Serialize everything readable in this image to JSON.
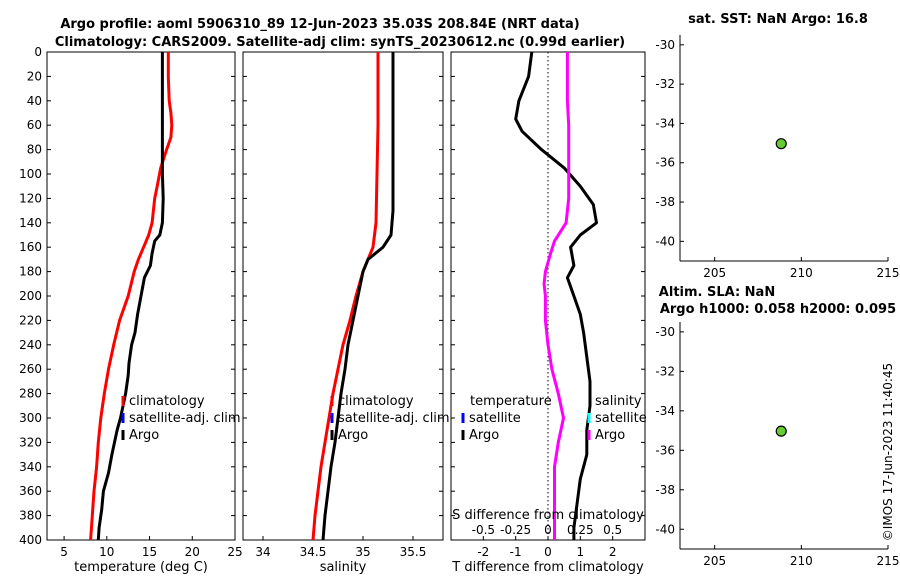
{
  "title": {
    "line1": "Argo profile: aoml 5906310_89 12-Jun-2023 35.03S 208.84E (NRT data)",
    "line2": "Climatology: CARS2009. Satellite-adj clim: synTS_20230612.nc (0.99d earlier)"
  },
  "timestamp": "©IMOS 17-Jun-2023 11:40:45",
  "colors": {
    "climatology": "#ff0000",
    "satellite": "#0000ff",
    "argo": "#000000",
    "salinity_diff": "#ff00ff",
    "salinity_diff_sat": "#00ffff",
    "marker": "#66cc33"
  },
  "chart_data": [
    {
      "type": "line",
      "id": "temperature",
      "xlabel": "temperature (deg C)",
      "ylabel": "",
      "xlim": [
        3,
        25
      ],
      "xticks": [
        5,
        10,
        15,
        20,
        25
      ],
      "ylim": [
        0,
        400
      ],
      "yticks": [
        0,
        20,
        40,
        60,
        80,
        100,
        120,
        140,
        160,
        180,
        200,
        220,
        240,
        260,
        280,
        300,
        320,
        340,
        360,
        380,
        400
      ],
      "legend": [
        "climatology",
        "satellite-adj. clim",
        "Argo"
      ],
      "series": [
        {
          "name": "climatology",
          "color": "#ff0000",
          "points": [
            [
              17.2,
              0
            ],
            [
              17.2,
              20
            ],
            [
              17.3,
              40
            ],
            [
              17.5,
              50
            ],
            [
              17.6,
              60
            ],
            [
              17.5,
              70
            ],
            [
              17.0,
              80
            ],
            [
              16.3,
              95
            ],
            [
              15.9,
              110
            ],
            [
              15.6,
              120
            ],
            [
              15.3,
              140
            ],
            [
              14.9,
              150
            ],
            [
              14.3,
              160
            ],
            [
              13.7,
              170
            ],
            [
              13.2,
              180
            ],
            [
              12.5,
              200
            ],
            [
              11.5,
              220
            ],
            [
              10.8,
              240
            ],
            [
              10.2,
              260
            ],
            [
              9.7,
              280
            ],
            [
              9.3,
              300
            ],
            [
              9.0,
              320
            ],
            [
              8.8,
              340
            ],
            [
              8.5,
              360
            ],
            [
              8.3,
              380
            ],
            [
              8.1,
              400
            ]
          ]
        },
        {
          "name": "Argo",
          "color": "#000000",
          "points": [
            [
              16.5,
              0
            ],
            [
              16.5,
              20
            ],
            [
              16.5,
              40
            ],
            [
              16.5,
              60
            ],
            [
              16.5,
              80
            ],
            [
              16.5,
              100
            ],
            [
              16.6,
              120
            ],
            [
              16.5,
              140
            ],
            [
              16.2,
              150
            ],
            [
              15.6,
              155
            ],
            [
              15.3,
              165
            ],
            [
              15.1,
              175
            ],
            [
              14.4,
              185
            ],
            [
              14.0,
              200
            ],
            [
              13.6,
              215
            ],
            [
              13.3,
              230
            ],
            [
              12.9,
              240
            ],
            [
              12.6,
              255
            ],
            [
              12.5,
              265
            ],
            [
              12.2,
              280
            ],
            [
              11.6,
              300
            ],
            [
              11.2,
              310
            ],
            [
              10.6,
              330
            ],
            [
              10.2,
              345
            ],
            [
              9.6,
              360
            ],
            [
              9.4,
              375
            ],
            [
              9.1,
              390
            ],
            [
              9.0,
              400
            ]
          ]
        }
      ]
    },
    {
      "type": "line",
      "id": "salinity",
      "xlabel": "salinity",
      "ylabel": "",
      "xlim": [
        33.8,
        35.8
      ],
      "xticks": [
        34,
        34.5,
        35,
        35.5
      ],
      "ylim": [
        0,
        400
      ],
      "legend": [
        "climatology",
        "satellite-adj. clim",
        "Argo"
      ],
      "series": [
        {
          "name": "climatology",
          "color": "#ff0000",
          "points": [
            [
              35.15,
              0
            ],
            [
              35.15,
              20
            ],
            [
              35.15,
              60
            ],
            [
              35.14,
              100
            ],
            [
              35.13,
              140
            ],
            [
              35.1,
              160
            ],
            [
              35.05,
              170
            ],
            [
              35.0,
              180
            ],
            [
              34.93,
              200
            ],
            [
              34.87,
              220
            ],
            [
              34.8,
              240
            ],
            [
              34.75,
              260
            ],
            [
              34.7,
              280
            ],
            [
              34.66,
              300
            ],
            [
              34.62,
              320
            ],
            [
              34.58,
              340
            ],
            [
              34.55,
              360
            ],
            [
              34.52,
              380
            ],
            [
              34.5,
              400
            ]
          ]
        },
        {
          "name": "Argo",
          "color": "#000000",
          "points": [
            [
              35.3,
              0
            ],
            [
              35.3,
              20
            ],
            [
              35.3,
              60
            ],
            [
              35.3,
              100
            ],
            [
              35.3,
              130
            ],
            [
              35.28,
              150
            ],
            [
              35.2,
              160
            ],
            [
              35.05,
              170
            ],
            [
              35.0,
              180
            ],
            [
              34.95,
              200
            ],
            [
              34.9,
              220
            ],
            [
              34.85,
              240
            ],
            [
              34.82,
              260
            ],
            [
              34.78,
              280
            ],
            [
              34.75,
              300
            ],
            [
              34.72,
              320
            ],
            [
              34.68,
              340
            ],
            [
              34.65,
              360
            ],
            [
              34.62,
              380
            ],
            [
              34.6,
              400
            ]
          ]
        }
      ]
    },
    {
      "type": "line",
      "id": "difference",
      "xlabel": "T difference from climatology",
      "xlabel_top": "S difference from climatology",
      "xlim": [
        -3,
        3
      ],
      "xticks": [
        -2,
        -1,
        0,
        1,
        2
      ],
      "top_xlim": [
        -0.75,
        0.75
      ],
      "top_xticks": [
        -0.5,
        -0.25,
        0,
        0.25,
        0.5
      ],
      "ylim": [
        0,
        400
      ],
      "legend_left": [
        "temperature",
        "satellite",
        "Argo"
      ],
      "legend_right": [
        "salinity",
        "satellite",
        "Argo"
      ],
      "series": [
        {
          "name": "T diff (Argo)",
          "color": "#000000",
          "points": [
            [
              -0.5,
              0
            ],
            [
              -0.6,
              20
            ],
            [
              -0.9,
              40
            ],
            [
              -1.0,
              55
            ],
            [
              -0.8,
              65
            ],
            [
              -0.2,
              80
            ],
            [
              0.5,
              95
            ],
            [
              1.0,
              110
            ],
            [
              1.4,
              125
            ],
            [
              1.5,
              140
            ],
            [
              1.0,
              150
            ],
            [
              0.7,
              160
            ],
            [
              0.8,
              175
            ],
            [
              0.6,
              185
            ],
            [
              0.8,
              200
            ],
            [
              1.0,
              215
            ],
            [
              1.1,
              230
            ],
            [
              1.2,
              250
            ],
            [
              1.3,
              270
            ],
            [
              1.3,
              290
            ],
            [
              1.2,
              310
            ],
            [
              1.2,
              330
            ],
            [
              1.0,
              350
            ],
            [
              0.9,
              370
            ],
            [
              0.8,
              390
            ],
            [
              0.8,
              400
            ]
          ]
        },
        {
          "name": "S diff (Argo)",
          "color": "#ff00ff",
          "axis": "top",
          "points": [
            [
              0.15,
              0
            ],
            [
              0.15,
              20
            ],
            [
              0.15,
              40
            ],
            [
              0.16,
              60
            ],
            [
              0.16,
              80
            ],
            [
              0.16,
              100
            ],
            [
              0.16,
              120
            ],
            [
              0.14,
              140
            ],
            [
              0.05,
              155
            ],
            [
              0.02,
              165
            ],
            [
              -0.02,
              180
            ],
            [
              -0.03,
              190
            ],
            [
              -0.02,
              200
            ],
            [
              -0.02,
              220
            ],
            [
              0.0,
              240
            ],
            [
              0.03,
              260
            ],
            [
              0.08,
              280
            ],
            [
              0.12,
              300
            ],
            [
              0.08,
              320
            ],
            [
              0.05,
              340
            ],
            [
              0.05,
              360
            ],
            [
              0.05,
              380
            ],
            [
              0.05,
              400
            ]
          ]
        }
      ]
    },
    {
      "type": "scatter",
      "id": "sst_map",
      "title": "sat. SST: NaN Argo: 16.8",
      "xlim": [
        203,
        215
      ],
      "xticks": [
        205,
        210,
        215
      ],
      "ylim": [
        -41,
        -29.5
      ],
      "yticks": [
        -30,
        -32,
        -34,
        -36,
        -38,
        -40
      ],
      "points": [
        [
          208.84,
          -35.03
        ]
      ]
    },
    {
      "type": "scatter",
      "id": "sla_map",
      "title": "Altim. SLA: NaN",
      "subtitle": "Argo h1000: 0.058 h2000: 0.095",
      "xlim": [
        203,
        215
      ],
      "xticks": [
        205,
        210,
        215
      ],
      "ylim": [
        -41,
        -29.5
      ],
      "yticks": [
        -30,
        -32,
        -34,
        -36,
        -38,
        -40
      ],
      "points": [
        [
          208.84,
          -35.03
        ]
      ]
    }
  ]
}
